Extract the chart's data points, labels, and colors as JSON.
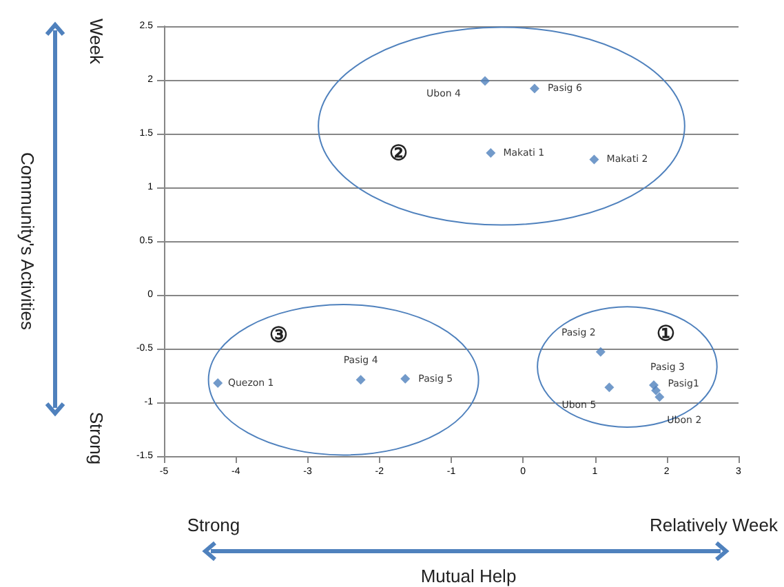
{
  "chart_data": {
    "type": "scatter",
    "xlabel": "Mutual Help",
    "x": [
      -0.53,
      0.16,
      -0.45,
      0.99,
      -4.25,
      -2.26,
      -1.64,
      1.08,
      1.2,
      1.82,
      1.85,
      1.9
    ],
    "values": [
      1.99,
      1.92,
      1.32,
      1.26,
      -0.82,
      -0.79,
      -0.78,
      -0.53,
      -0.86,
      -0.84,
      -0.89,
      -0.95
    ],
    "color": "#4f81bd",
    "marker": "diamond",
    "xlim": [
      -5,
      3
    ],
    "xticks": [
      -5,
      -4,
      -3,
      -2,
      -1,
      0,
      1,
      2,
      3
    ],
    "ylim": [
      -1.5,
      2.5
    ],
    "yticks": [
      -1.5,
      -1,
      -0.5,
      0,
      0.5,
      1,
      1.5,
      2,
      2.5
    ],
    "grid": "y",
    "annotations": [
      {
        "text": "Ubon 4",
        "x": -0.53,
        "y": 1.99
      },
      {
        "text": "Pasig 6",
        "x": 0.16,
        "y": 1.92
      },
      {
        "text": "Makati 1",
        "x": -0.45,
        "y": 1.32
      },
      {
        "text": "Makati 2",
        "x": 0.99,
        "y": 1.26
      },
      {
        "text": "Quezon 1",
        "x": -4.25,
        "y": -0.82
      },
      {
        "text": "Pasig 4",
        "x": -2.26,
        "y": -0.79
      },
      {
        "text": "Pasig 5",
        "x": -1.64,
        "y": -0.78
      },
      {
        "text": "Pasig 2",
        "x": 1.08,
        "y": -0.53
      },
      {
        "text": "Ubon 5",
        "x": 1.2,
        "y": -0.86
      },
      {
        "text": "Pasig 3",
        "x": 1.82,
        "y": -0.84
      },
      {
        "text": "Pasig1",
        "x": 1.85,
        "y": -0.89
      },
      {
        "text": "Ubon 2",
        "x": 1.9,
        "y": -0.95
      },
      "②",
      "③",
      "①",
      "Week",
      "Strong",
      "Strong",
      "Relatively Week",
      "Community's Activities"
    ]
  }
}
